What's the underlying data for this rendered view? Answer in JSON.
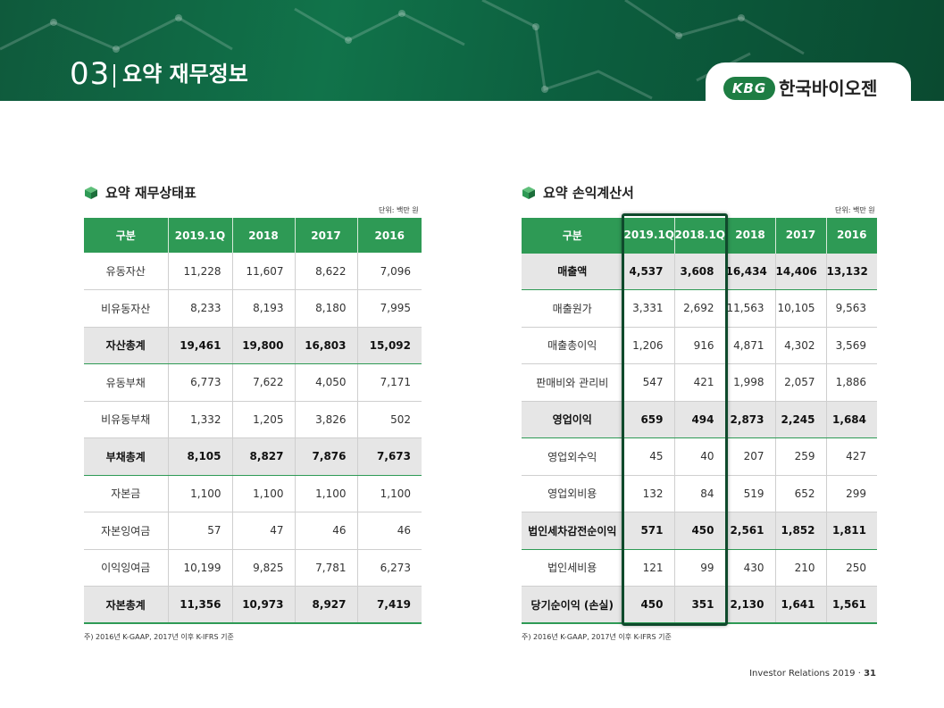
{
  "header": {
    "section_number": "03",
    "section_title": "요약 재무정보",
    "logo_badge": "KBG",
    "logo_name": "한국바이오젠"
  },
  "balance_sheet": {
    "title": "요약 재무상태표",
    "unit": "단위: 백만 원",
    "columns": [
      "구분",
      "2019.1Q",
      "2018",
      "2017",
      "2016"
    ],
    "rows": [
      {
        "label": "유동자산",
        "values": [
          "11,228",
          "11,607",
          "8,622",
          "7,096"
        ],
        "total": false
      },
      {
        "label": "비유동자산",
        "values": [
          "8,233",
          "8,193",
          "8,180",
          "7,995"
        ],
        "total": false
      },
      {
        "label": "자산총계",
        "values": [
          "19,461",
          "19,800",
          "16,803",
          "15,092"
        ],
        "total": true
      },
      {
        "label": "유동부채",
        "values": [
          "6,773",
          "7,622",
          "4,050",
          "7,171"
        ],
        "total": false
      },
      {
        "label": "비유동부채",
        "values": [
          "1,332",
          "1,205",
          "3,826",
          "502"
        ],
        "total": false
      },
      {
        "label": "부채총계",
        "values": [
          "8,105",
          "8,827",
          "7,876",
          "7,673"
        ],
        "total": true
      },
      {
        "label": "자본금",
        "values": [
          "1,100",
          "1,100",
          "1,100",
          "1,100"
        ],
        "total": false
      },
      {
        "label": "자본잉여금",
        "values": [
          "57",
          "47",
          "46",
          "46"
        ],
        "total": false
      },
      {
        "label": "이익잉여금",
        "values": [
          "10,199",
          "9,825",
          "7,781",
          "6,273"
        ],
        "total": false
      },
      {
        "label": "자본총계",
        "values": [
          "11,356",
          "10,973",
          "8,927",
          "7,419"
        ],
        "total": true
      }
    ],
    "note": "주) 2016년 K-GAAP, 2017년 이후 K-IFRS 기준"
  },
  "income_statement": {
    "title": "요약 손익계산서",
    "unit": "단위: 백만 원",
    "columns": [
      "구분",
      "2019.1Q",
      "2018.1Q",
      "2018",
      "2017",
      "2016"
    ],
    "rows": [
      {
        "label": "매출액",
        "values": [
          "4,537",
          "3,608",
          "16,434",
          "14,406",
          "13,132"
        ],
        "total": true
      },
      {
        "label": "매출원가",
        "values": [
          "3,331",
          "2,692",
          "11,563",
          "10,105",
          "9,563"
        ],
        "total": false
      },
      {
        "label": "매출총이익",
        "values": [
          "1,206",
          "916",
          "4,871",
          "4,302",
          "3,569"
        ],
        "total": false
      },
      {
        "label": "판매비와 관리비",
        "values": [
          "547",
          "421",
          "1,998",
          "2,057",
          "1,886"
        ],
        "total": false
      },
      {
        "label": "영업이익",
        "values": [
          "659",
          "494",
          "2,873",
          "2,245",
          "1,684"
        ],
        "total": true
      },
      {
        "label": "영업외수익",
        "values": [
          "45",
          "40",
          "207",
          "259",
          "427"
        ],
        "total": false
      },
      {
        "label": "영업외비용",
        "values": [
          "132",
          "84",
          "519",
          "652",
          "299"
        ],
        "total": false
      },
      {
        "label": "법인세차감전순이익",
        "values": [
          "571",
          "450",
          "2,561",
          "1,852",
          "1,811"
        ],
        "total": true
      },
      {
        "label": "법인세비용",
        "values": [
          "121",
          "99",
          "430",
          "210",
          "250"
        ],
        "total": false
      },
      {
        "label": "당기순이익 (손실)",
        "values": [
          "450",
          "351",
          "2,130",
          "1,641",
          "1,561"
        ],
        "total": true
      }
    ],
    "note": "주) 2016년 K-GAAP, 2017년 이후 K-IFRS 기준"
  },
  "footer": {
    "text": "Investor Relations 2019 · ",
    "page": "31"
  },
  "colors": {
    "banner": "#11734a",
    "table_header": "#2e9a55",
    "highlight_border": "#0f4a2c",
    "total_row_bg": "#e6e6e6"
  }
}
